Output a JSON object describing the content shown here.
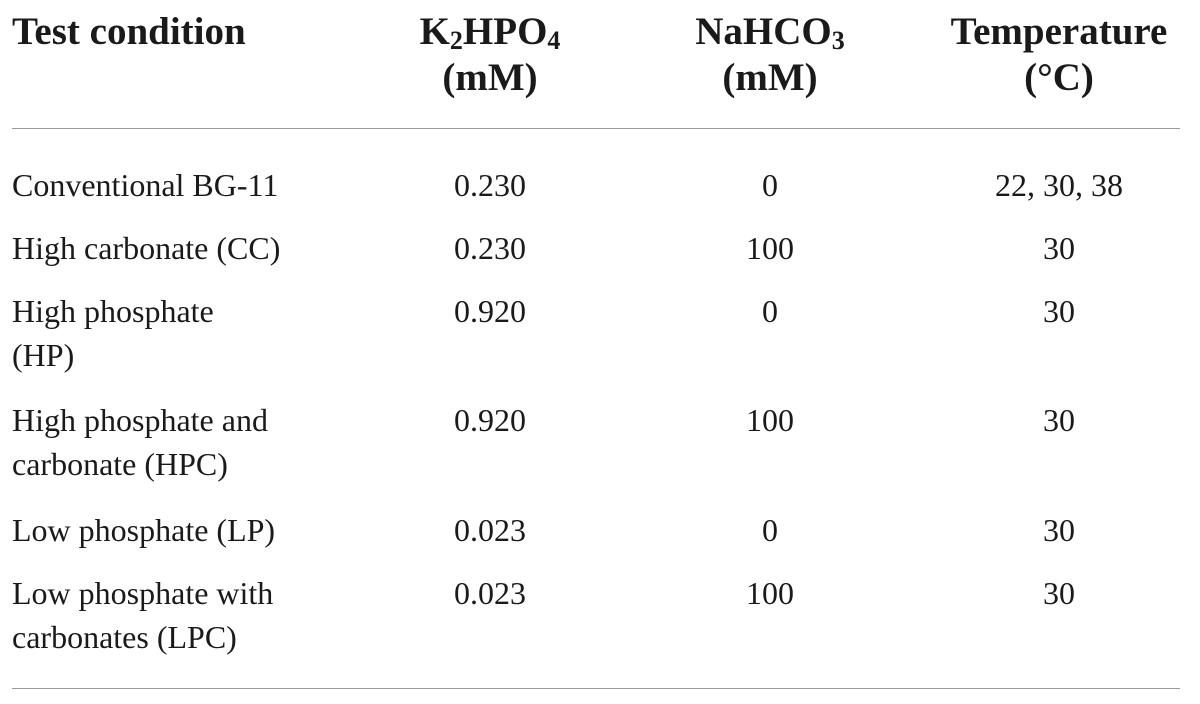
{
  "table": {
    "headers": [
      {
        "parts": [
          "Test condition"
        ]
      },
      {
        "parts": [
          "K",
          "2",
          "HPO",
          "4",
          "(mM)"
        ]
      },
      {
        "parts": [
          "NaHCO",
          "3",
          "(mM)"
        ]
      },
      {
        "parts": [
          "Temperature",
          "(°C)"
        ]
      }
    ],
    "rows": [
      {
        "condition_lines": [
          "Conventional BG-11"
        ],
        "k2hpo4": "0.230",
        "nahco3": "0",
        "temperature": "22, 30, 38"
      },
      {
        "condition_lines": [
          "High carbonate (CC)"
        ],
        "k2hpo4": "0.230",
        "nahco3": "100",
        "temperature": "30"
      },
      {
        "condition_lines": [
          "High phosphate",
          "(HP)"
        ],
        "k2hpo4": "0.920",
        "nahco3": "0",
        "temperature": "30"
      },
      {
        "condition_lines": [
          "High phosphate and",
          "carbonate (HPC)"
        ],
        "k2hpo4": "0.920",
        "nahco3": "100",
        "temperature": "30"
      },
      {
        "condition_lines": [
          "Low phosphate (LP)"
        ],
        "k2hpo4": "0.023",
        "nahco3": "0",
        "temperature": "30"
      },
      {
        "condition_lines": [
          "Low phosphate with",
          "carbonates (LPC)"
        ],
        "k2hpo4": "0.023",
        "nahco3": "100",
        "temperature": "30"
      }
    ]
  }
}
